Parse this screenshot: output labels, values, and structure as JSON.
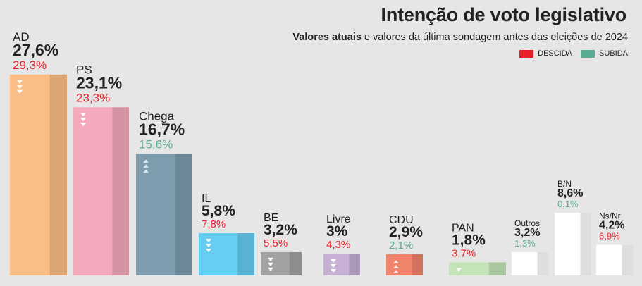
{
  "header": {
    "title": "Intenção de voto legislativo",
    "subtitle_bold": "Valores atuais",
    "subtitle_rest": " e valores da última sondagem antes das eleições de 2024"
  },
  "legend": {
    "descida_label": "DESCIDA",
    "subida_label": "SUBIDA",
    "descida_color": "#e8202a",
    "subida_color": "#5aab93"
  },
  "chart_data": {
    "type": "bar",
    "title": "Intenção de voto legislativo",
    "categories": [
      "AD",
      "PS",
      "Chega",
      "IL",
      "BE",
      "Livre",
      "CDU",
      "PAN",
      "Outros",
      "B/N",
      "Ns/Nr"
    ],
    "series": [
      {
        "name": "Valores atuais",
        "values": [
          27.6,
          23.1,
          16.7,
          5.8,
          3.2,
          3.0,
          2.9,
          1.8,
          3.2,
          8.6,
          4.2
        ],
        "labels": [
          "27,6%",
          "23,1%",
          "16,7%",
          "5,8%",
          "3,2%",
          "3%",
          "2,9%",
          "1,8%",
          "3,2%",
          "8,6%",
          "4,2%"
        ]
      },
      {
        "name": "Última sondagem antes das eleições de 2024",
        "values": [
          29.3,
          23.3,
          15.6,
          7.8,
          5.5,
          4.3,
          2.1,
          3.7,
          1.3,
          0.1,
          6.9
        ],
        "labels": [
          "29,3%",
          "23,3%",
          "15,6%",
          "7,8%",
          "5,5%",
          "4,3%",
          "2,1%",
          "3,7%",
          "1,3%",
          "0,1%",
          "6,9%"
        ]
      }
    ],
    "trend": [
      "descida",
      "descida",
      "subida",
      "descida",
      "descida",
      "descida",
      "subida",
      "descida",
      "subida",
      "subida",
      "descida"
    ],
    "colors": [
      "#fbbd86",
      "#f4a9bc",
      "#7d9daf",
      "#66cdf3",
      "#a2a2a2",
      "#c6b0d4",
      "#f0846a",
      "#c4e4b7",
      "#ffffff",
      "#ffffff",
      "#ffffff"
    ],
    "ylim": [
      0,
      30
    ],
    "grid": false
  }
}
